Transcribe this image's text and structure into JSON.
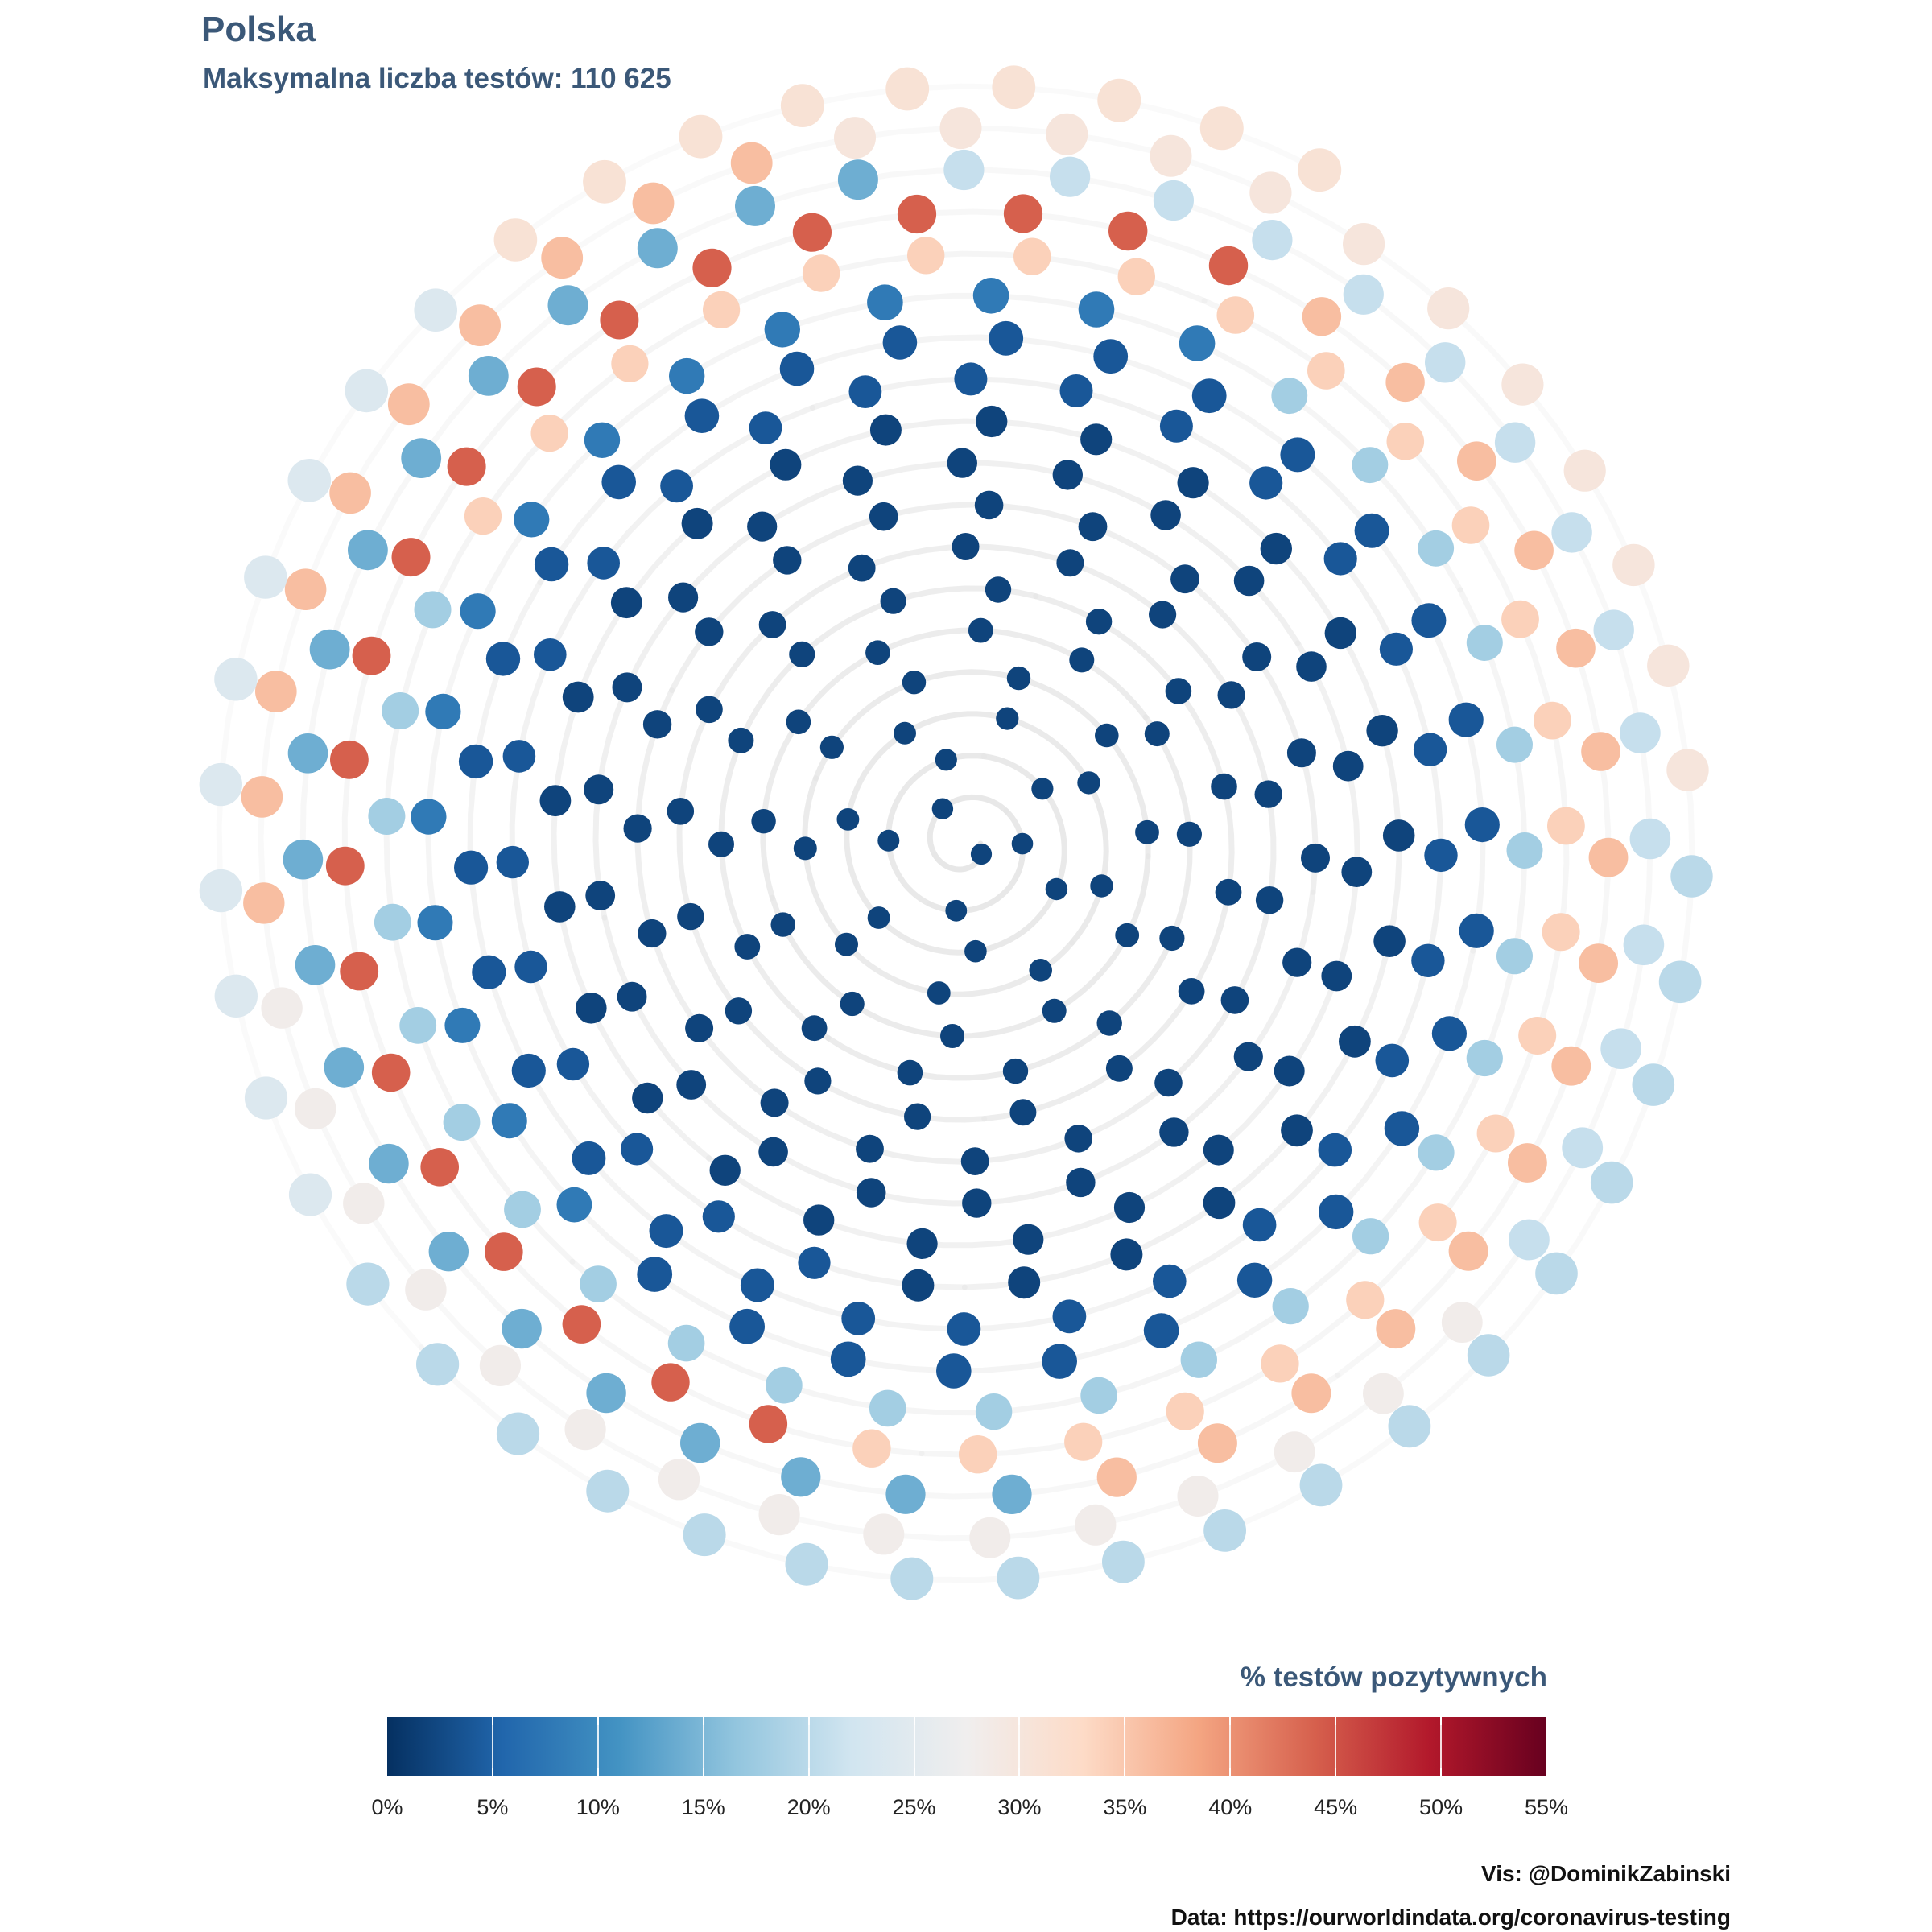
{
  "header": {
    "title": "Polska",
    "subtitle": "Maksymalna liczba testów: 110 625"
  },
  "legend": {
    "title": "% testów pozytywnych",
    "ticks": [
      "0%",
      "5%",
      "10%",
      "15%",
      "20%",
      "25%",
      "30%",
      "35%",
      "40%",
      "45%",
      "50%",
      "55%"
    ]
  },
  "credits": {
    "vis": "Vis: @DominikZabinski",
    "data": "Data: https://ourworldindata.org/coronavirus-testing"
  },
  "colors": {
    "title": "#3b5878",
    "track": "#e6e6e6",
    "scale": [
      "#053061",
      "#2166ac",
      "#4393c3",
      "#92c5de",
      "#d1e5f0",
      "#f0eeee",
      "#fddbc7",
      "#f4a582",
      "#d6604d",
      "#b2182b",
      "#67001f"
    ]
  },
  "chart_data": {
    "type": "scatter",
    "layout": "archimedean spiral, one point per day, ordered from center outward",
    "size_encoding": "number of tests (max 110 625)",
    "color_encoding": "% positive tests",
    "color_domain": [
      0,
      55
    ],
    "n_points": 409,
    "positive_pct_by_segment": [
      {
        "from_point": 1,
        "to_point": 140,
        "positive_pct": 2
      },
      {
        "from_point": 141,
        "to_point": 200,
        "positive_pct": 4
      },
      {
        "from_point": 201,
        "to_point": 215,
        "positive_pct": 8
      },
      {
        "from_point": 216,
        "to_point": 240,
        "positive_pct": 18
      },
      {
        "from_point": 241,
        "to_point": 265,
        "positive_pct": 34
      },
      {
        "from_point": 266,
        "to_point": 285,
        "positive_pct": 44
      },
      {
        "from_point": 286,
        "to_point": 300,
        "positive_pct": 36
      },
      {
        "from_point": 301,
        "to_point": 320,
        "positive_pct": 14
      },
      {
        "from_point": 321,
        "to_point": 335,
        "positive_pct": 21
      },
      {
        "from_point": 336,
        "to_point": 350,
        "positive_pct": 28
      },
      {
        "from_point": 351,
        "to_point": 360,
        "positive_pct": 36
      },
      {
        "from_point": 361,
        "to_point": 372,
        "positive_pct": 30
      },
      {
        "from_point": 373,
        "to_point": 390,
        "positive_pct": 20
      },
      {
        "from_point": 391,
        "to_point": 400,
        "positive_pct": 24
      },
      {
        "from_point": 401,
        "to_point": 409,
        "positive_pct": 31
      }
    ]
  }
}
